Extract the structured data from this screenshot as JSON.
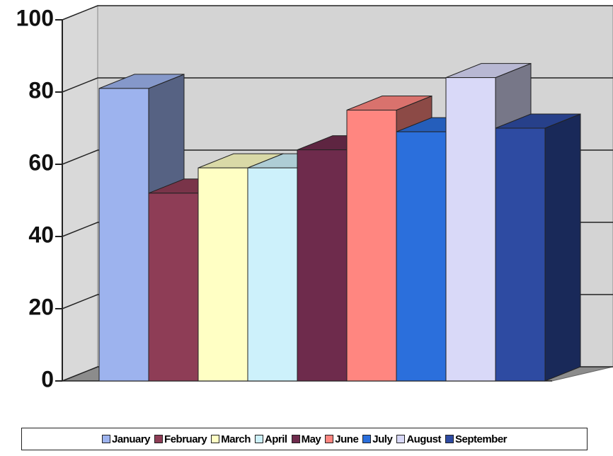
{
  "chart_data": {
    "type": "bar3d",
    "series": [
      {
        "name": "January",
        "color": "#9db3ee",
        "values": [
          81
        ]
      },
      {
        "name": "February",
        "color": "#8e3d56",
        "values": [
          52
        ]
      },
      {
        "name": "March",
        "color": "#ffffc4",
        "values": [
          59
        ]
      },
      {
        "name": "April",
        "color": "#cdf1fb",
        "values": [
          59
        ]
      },
      {
        "name": "May",
        "color": "#6e2b4c",
        "values": [
          64
        ]
      },
      {
        "name": "June",
        "color": "#ff8680",
        "values": [
          75
        ]
      },
      {
        "name": "July",
        "color": "#2b6fdc",
        "values": [
          69
        ]
      },
      {
        "name": "August",
        "color": "#d9d9f8",
        "values": [
          84
        ]
      },
      {
        "name": "September",
        "color": "#2e4ba2",
        "values": [
          70
        ]
      }
    ],
    "ylim": [
      0,
      100
    ],
    "yticks": [
      0,
      20,
      40,
      60,
      80,
      100
    ],
    "grid": true,
    "legend": "bottom"
  }
}
